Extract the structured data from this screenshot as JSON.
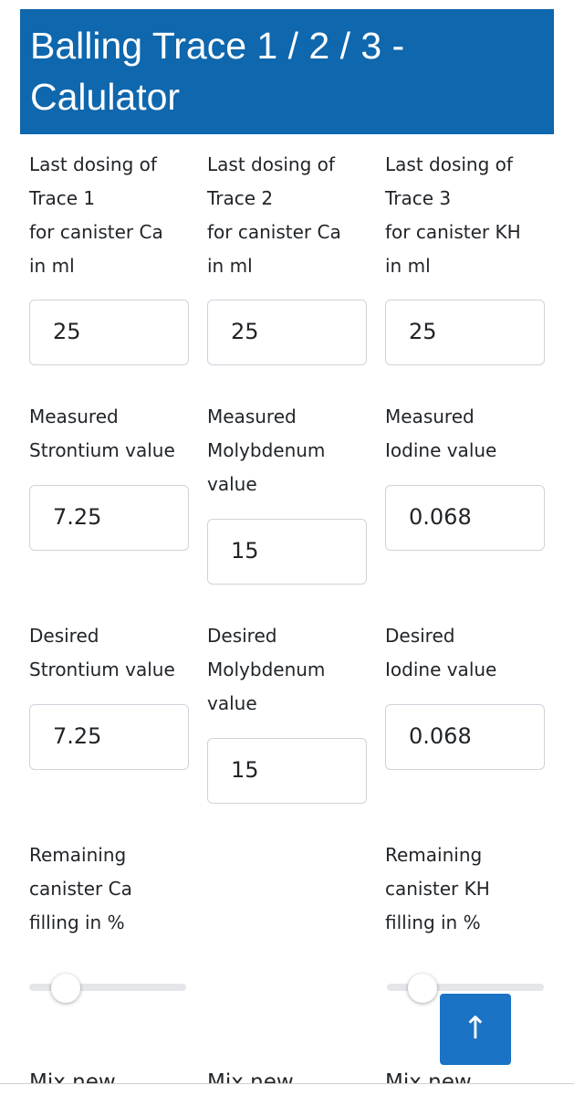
{
  "header": {
    "title": "Balling Trace 1 / 2 / 3 - Calulator"
  },
  "fields": {
    "dosing": [
      {
        "label": [
          "Last dosing of",
          "Trace 1",
          "for canister Ca",
          "in ml"
        ],
        "value": "25"
      },
      {
        "label": [
          "Last dosing of",
          "Trace 2",
          "for canister Ca",
          "in ml"
        ],
        "value": "25"
      },
      {
        "label": [
          "Last dosing of",
          "Trace 3",
          "for canister KH",
          "in ml"
        ],
        "value": "25"
      }
    ],
    "measured": [
      {
        "label": [
          "Measured",
          "Strontium value"
        ],
        "value": "7.25"
      },
      {
        "label": [
          "Measured",
          "Molybdenum",
          "value"
        ],
        "value": "15"
      },
      {
        "label": [
          "Measured",
          "Iodine value"
        ],
        "value": "0.068"
      }
    ],
    "desired": [
      {
        "label": [
          "Desired",
          "Strontium value"
        ],
        "value": "7.25"
      },
      {
        "label": [
          "Desired",
          "Molybdenum",
          "value"
        ],
        "value": "15"
      },
      {
        "label": [
          "Desired",
          "Iodine value"
        ],
        "value": "0.068"
      }
    ],
    "remaining": [
      {
        "label": [
          "Remaining",
          "canister Ca",
          "filling in %"
        ]
      },
      {
        "label": [
          "Remaining",
          "canister KH",
          "filling in %"
        ]
      }
    ],
    "mix": [
      "Mix new",
      "Mix new",
      "Mix new"
    ]
  },
  "scroll_button": {
    "icon": "↑"
  }
}
